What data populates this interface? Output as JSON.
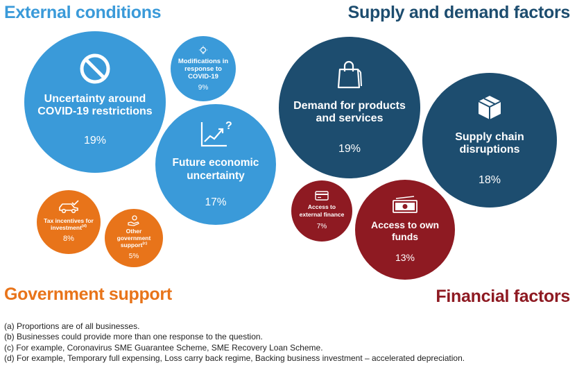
{
  "headings": {
    "external": "External conditions",
    "supply": "Supply and demand factors",
    "government": "Government support",
    "financial": "Financial factors"
  },
  "colors": {
    "external": "#3a9ad9",
    "supply": "#1d4d6f",
    "government": "#e8741a",
    "financial": "#8e1a22"
  },
  "bubbles": {
    "covid_restrictions": {
      "label_line1": "Uncertainty around",
      "label_line2": "COVID-19 restrictions",
      "value": "19%",
      "icon": "no-entry-icon"
    },
    "covid_modifications": {
      "label_line1": "Modifications in",
      "label_line2": "response to",
      "label_line3": "COVID-19",
      "value": "9%",
      "icon": "lightbulb-icon"
    },
    "future_uncertainty": {
      "label_line1": "Future economic",
      "label_line2": "uncertainty",
      "value": "17%",
      "icon": "rising-chart-question-icon"
    },
    "demand": {
      "label_line1": "Demand for products",
      "label_line2": "and services",
      "value": "19%",
      "icon": "shopping-bag-icon"
    },
    "supply_chain": {
      "label_line1": "Supply chain",
      "label_line2": "disruptions",
      "value": "18%",
      "icon": "package-box-icon"
    },
    "tax_incentives": {
      "label_line1": "Tax incentives for",
      "label_line2": "investment",
      "label_sup": "(d)",
      "value": "8%",
      "icon": "car-check-icon"
    },
    "other_government": {
      "label_line1": "Other",
      "label_line2": "government",
      "label_line3": "support",
      "label_sup": "(c)",
      "value": "5%",
      "icon": "hand-coin-icon"
    },
    "external_finance": {
      "label_line1": "Access to",
      "label_line2": "external finance",
      "value": "7%",
      "icon": "credit-card-icon"
    },
    "own_funds": {
      "label_line1": "Access to own",
      "label_line2": "funds",
      "value": "13%",
      "icon": "banknote-icon"
    }
  },
  "notes": [
    "(a) Proportions are of all businesses.",
    "(b) Businesses could provide more than one response to the question.",
    "(c) For example, Coronavirus SME Guarantee Scheme, SME Recovery Loan Scheme.",
    "(d) For example, Temporary full expensing, Loss carry back regime, Backing business investment – accelerated depreciation."
  ]
}
